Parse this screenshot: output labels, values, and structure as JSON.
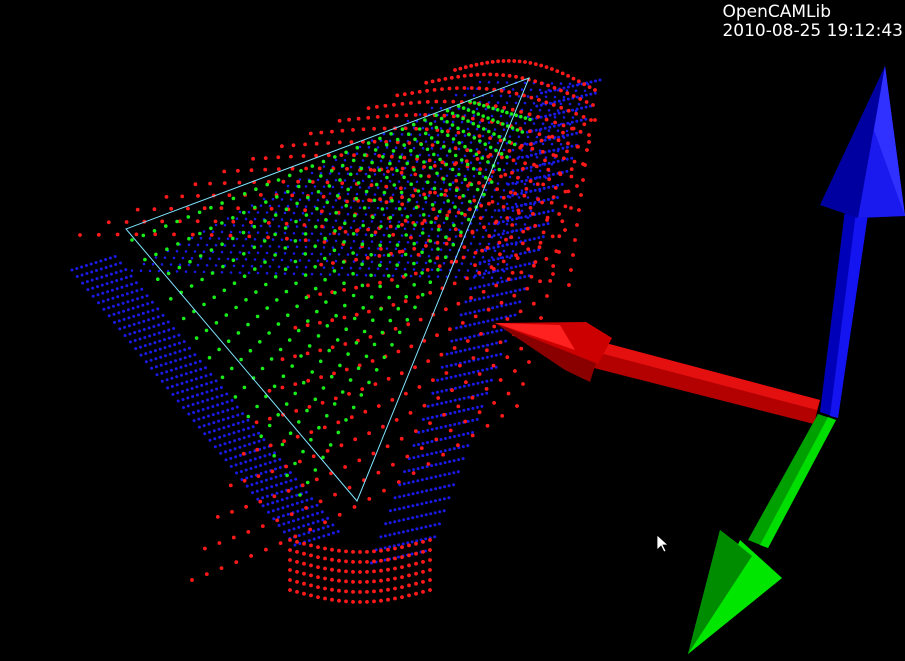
{
  "overlay": {
    "app_name": "OpenCAMLib",
    "timestamp": "2010-08-25 19:12:43"
  },
  "colors": {
    "background": "#000000",
    "offset_surface_points": "#1a1ae6",
    "contour_points": "#ff1a1a",
    "on_triangle_points": "#1aee1a",
    "triangle_edges": "#7fe5ff",
    "axis_x": "#e00000",
    "axis_y": "#00dd00",
    "axis_z": "#1010ee"
  },
  "scene": {
    "objects": [
      "triangle-wireframe",
      "contour-loops",
      "cutter-location-points",
      "xyz-axes-glyph"
    ],
    "cursor": "arrow-cursor-icon"
  }
}
